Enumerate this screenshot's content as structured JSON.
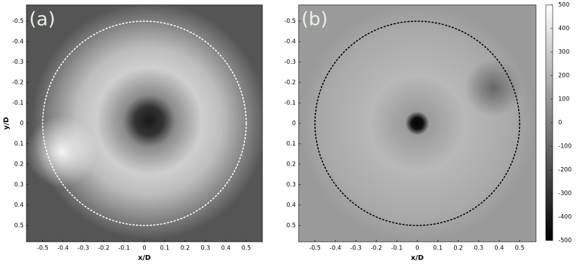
{
  "chart_data": [
    {
      "type": "heatmap",
      "panel_label": "(a)",
      "xlabel": "x/D",
      "ylabel": "y/D",
      "xlim": [
        -0.58,
        0.58
      ],
      "ylim": [
        -0.58,
        0.58
      ],
      "xticks": [
        -0.5,
        -0.4,
        -0.3,
        -0.2,
        -0.1,
        0,
        0.1,
        0.2,
        0.3,
        0.4,
        0.5
      ],
      "yticks": [
        -0.5,
        -0.4,
        -0.3,
        -0.2,
        -0.1,
        0,
        0.1,
        0.2,
        0.3,
        0.4,
        0.5
      ],
      "circle": {
        "radius": 0.5,
        "color": "#ffffff"
      }
    },
    {
      "type": "heatmap",
      "panel_label": "(b)",
      "xlabel": "x/D",
      "xlim": [
        -0.58,
        0.58
      ],
      "ylim": [
        -0.58,
        0.58
      ],
      "xticks": [
        -0.5,
        -0.4,
        -0.3,
        -0.2,
        -0.1,
        0,
        0.1,
        0.2,
        0.3,
        0.4,
        0.5
      ],
      "yticks": [
        -0.5,
        -0.4,
        -0.3,
        -0.2,
        -0.1,
        0,
        0.1,
        0.2,
        0.3,
        0.4,
        0.5
      ],
      "circle": {
        "radius": 0.5,
        "color": "#000000"
      },
      "colorbar": {
        "lim": [
          -500,
          500
        ],
        "ticks": [
          500,
          400,
          300,
          200,
          100,
          0,
          -100,
          -200,
          -300,
          -400,
          -500
        ]
      }
    }
  ]
}
